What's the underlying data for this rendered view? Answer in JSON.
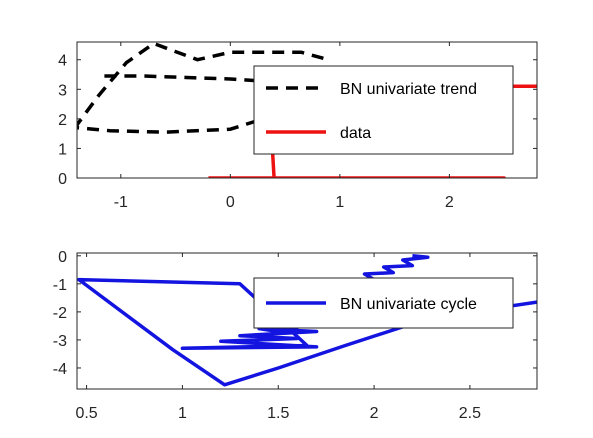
{
  "chart_data": [
    {
      "type": "line",
      "xlim": [
        -1.4,
        2.8
      ],
      "ylim": [
        0,
        4.6
      ],
      "xticks": [
        -1,
        0,
        1,
        2
      ],
      "xtick_labels": [
        "-1",
        "0",
        "1",
        "2"
      ],
      "yticks": [
        0,
        1,
        2,
        3,
        4
      ],
      "ytick_labels": [
        "0",
        "1",
        "2",
        "3",
        "4"
      ],
      "grid": false,
      "legend_position": "top-right",
      "series": [
        {
          "name": "BN univariate trend",
          "color": "#000000",
          "dash": "dashed",
          "x": [
            0.85,
            0.65,
            0.4,
            0.0,
            -0.3,
            -0.7,
            -0.95,
            -1.2,
            -1.4,
            -1.4,
            -1.1,
            -0.6,
            0.0,
            0.3,
            0.5
          ],
          "y": [
            4.05,
            4.25,
            4.25,
            4.25,
            4.0,
            4.55,
            3.9,
            2.8,
            1.8,
            1.7,
            1.6,
            1.55,
            1.65,
            2.0,
            3.0
          ]
        },
        {
          "name": "",
          "color": "#000000",
          "dash": "dashed",
          "x": [
            -1.15,
            -0.8,
            -0.4,
            0.0,
            0.2,
            0.5
          ],
          "y": [
            3.45,
            3.45,
            3.4,
            3.35,
            3.3,
            3.2
          ]
        },
        {
          "name": "data",
          "color": "#ee1111",
          "dash": "solid",
          "x": [
            -0.2,
            2.5,
            0.4,
            0.35,
            2.8
          ],
          "y": [
            0.0,
            0.0,
            0.0,
            3.1,
            3.1
          ]
        }
      ]
    },
    {
      "type": "line",
      "xlim": [
        0.45,
        2.85
      ],
      "ylim": [
        -4.75,
        0.1
      ],
      "xticks": [
        0.5,
        1.0,
        1.5,
        2.0,
        2.5
      ],
      "xtick_labels": [
        "0.5",
        "1",
        "1.5",
        "2",
        "2.5"
      ],
      "yticks": [
        0,
        -1,
        -2,
        -3,
        -4
      ],
      "ytick_labels": [
        "0",
        "-1",
        "-2",
        "-3",
        "-4"
      ],
      "grid": false,
      "legend_position": "top-right",
      "series": [
        {
          "name": "BN univariate cycle",
          "color": "#1414e0",
          "dash": "solid",
          "x": [
            2.85,
            2.3,
            1.85,
            1.5,
            1.22,
            0.95,
            0.46,
            1.3,
            1.65,
            1.0,
            1.7,
            1.2,
            1.6,
            1.3,
            1.7,
            1.4,
            1.5,
            1.6,
            1.9,
            2.0,
            1.95,
            2.1,
            2.05,
            2.2,
            2.15,
            2.28,
            2.2
          ],
          "y": [
            -1.65,
            -2.2,
            -3.2,
            -4.0,
            -4.6,
            -3.35,
            -0.85,
            -1.0,
            -3.2,
            -3.3,
            -3.25,
            -3.05,
            -2.95,
            -2.85,
            -2.7,
            -2.6,
            -2.7,
            -2.55,
            -0.95,
            -0.85,
            -0.65,
            -0.6,
            -0.4,
            -0.35,
            -0.15,
            -0.05,
            0.0
          ]
        }
      ]
    }
  ]
}
